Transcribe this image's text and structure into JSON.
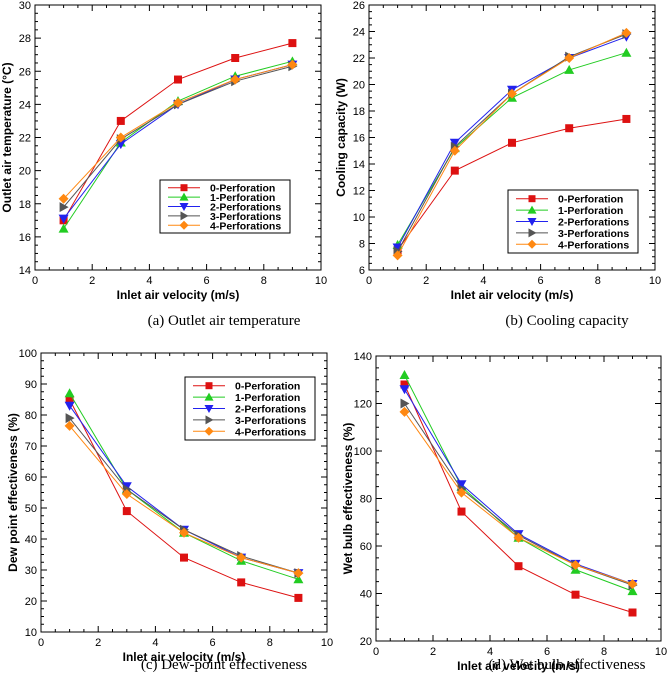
{
  "colors": {
    "0-Perforation": "#dd1111",
    "1-Perforation": "#22cc22",
    "2-Perforations": "#2222ee",
    "3-Perforations": "#555555",
    "4-Perforations": "#ff8811"
  },
  "chart_data": [
    {
      "id": "a",
      "type": "line",
      "caption": "(a) Outlet air temperature",
      "xlabel": "Inlet air velocity (m/s)",
      "ylabel": "Outlet air temperature (°C)",
      "xlim": [
        0,
        10
      ],
      "ylim": [
        14,
        30
      ],
      "xticks": [
        0,
        2,
        4,
        6,
        8,
        10
      ],
      "yticks": [
        14,
        16,
        18,
        20,
        22,
        24,
        26,
        28,
        30
      ],
      "x": [
        1,
        3,
        5,
        7,
        9
      ],
      "legend_position": "middle-right",
      "series": [
        {
          "name": "0-Perforation",
          "marker": "square",
          "values": [
            17.0,
            23.0,
            25.5,
            26.8,
            27.7
          ]
        },
        {
          "name": "1-Perforation",
          "marker": "triangle-up",
          "values": [
            16.5,
            21.7,
            24.2,
            25.7,
            26.6
          ]
        },
        {
          "name": "2-Perforations",
          "marker": "triangle-down",
          "values": [
            17.1,
            21.6,
            24.0,
            25.5,
            26.4
          ]
        },
        {
          "name": "3-Perforations",
          "marker": "triangle-right",
          "values": [
            17.8,
            21.9,
            24.0,
            25.4,
            26.3
          ]
        },
        {
          "name": "4-Perforations",
          "marker": "diamond",
          "values": [
            18.3,
            22.0,
            24.1,
            25.5,
            26.4
          ]
        }
      ]
    },
    {
      "id": "b",
      "type": "line",
      "caption": "(b) Cooling capacity",
      "xlabel": "Inlet air velocity (m/s)",
      "ylabel": "Cooling capacity (W)",
      "xlim": [
        0,
        10
      ],
      "ylim": [
        6,
        26
      ],
      "xticks": [
        0,
        2,
        4,
        6,
        8,
        10
      ],
      "yticks": [
        6,
        8,
        10,
        12,
        14,
        16,
        18,
        20,
        22,
        24,
        26
      ],
      "x": [
        1,
        3,
        5,
        7,
        9
      ],
      "legend_position": "bottom-right",
      "series": [
        {
          "name": "0-Perforation",
          "marker": "square",
          "values": [
            7.5,
            13.5,
            15.6,
            16.7,
            17.4
          ]
        },
        {
          "name": "1-Perforation",
          "marker": "triangle-up",
          "values": [
            7.9,
            15.2,
            19.0,
            21.1,
            22.4
          ]
        },
        {
          "name": "2-Perforations",
          "marker": "triangle-down",
          "values": [
            7.7,
            15.6,
            19.6,
            22.0,
            23.6
          ]
        },
        {
          "name": "3-Perforations",
          "marker": "triangle-right",
          "values": [
            7.4,
            15.3,
            19.3,
            22.1,
            23.8
          ]
        },
        {
          "name": "4-Perforations",
          "marker": "diamond",
          "values": [
            7.1,
            15.0,
            19.3,
            22.0,
            23.9
          ]
        }
      ]
    },
    {
      "id": "c",
      "type": "line",
      "caption": "(c) Dew-point effectiveness",
      "xlabel": "Inlet air velocity (m/s)",
      "ylabel": "Dew point effectiveness (%)",
      "xlim": [
        0,
        10
      ],
      "ylim": [
        10,
        100
      ],
      "xticks": [
        0,
        2,
        4,
        6,
        8,
        10
      ],
      "yticks": [
        10,
        20,
        30,
        40,
        50,
        60,
        70,
        80,
        90,
        100
      ],
      "x": [
        1,
        3,
        5,
        7,
        9
      ],
      "legend_position": "top-right",
      "series": [
        {
          "name": "0-Perforation",
          "marker": "square",
          "values": [
            85,
            49,
            34,
            26,
            21
          ]
        },
        {
          "name": "1-Perforation",
          "marker": "triangle-up",
          "values": [
            87,
            56,
            42,
            33,
            27
          ]
        },
        {
          "name": "2-Perforations",
          "marker": "triangle-down",
          "values": [
            83,
            57,
            43,
            34,
            29
          ]
        },
        {
          "name": "3-Perforations",
          "marker": "triangle-right",
          "values": [
            79,
            56,
            43,
            34.5,
            29
          ]
        },
        {
          "name": "4-Perforations",
          "marker": "diamond",
          "values": [
            76.5,
            54.5,
            42,
            34,
            29
          ]
        }
      ]
    },
    {
      "id": "d",
      "type": "line",
      "caption": "(d) Wet bulb effectiveness",
      "xlabel": "Inlet air velocity (m/s)",
      "ylabel": "Wet bulb effectiveness (%)",
      "xlim": [
        0,
        10
      ],
      "ylim": [
        20,
        140
      ],
      "xticks": [
        0,
        2,
        4,
        6,
        8,
        10
      ],
      "yticks": [
        20,
        40,
        60,
        80,
        100,
        120,
        140
      ],
      "x": [
        1,
        3,
        5,
        7,
        9
      ],
      "legend_position": "none",
      "series": [
        {
          "name": "0-Perforation",
          "marker": "square",
          "values": [
            128,
            74.5,
            51.5,
            39.5,
            32
          ]
        },
        {
          "name": "1-Perforation",
          "marker": "triangle-up",
          "values": [
            132,
            85,
            63.5,
            50,
            41
          ]
        },
        {
          "name": "2-Perforations",
          "marker": "triangle-down",
          "values": [
            126,
            86,
            65,
            52.5,
            44
          ]
        },
        {
          "name": "3-Perforations",
          "marker": "triangle-right",
          "values": [
            120,
            84,
            64.5,
            52,
            43.5
          ]
        },
        {
          "name": "4-Perforations",
          "marker": "diamond",
          "values": [
            116.5,
            82.5,
            63.5,
            52,
            44
          ]
        }
      ]
    }
  ]
}
